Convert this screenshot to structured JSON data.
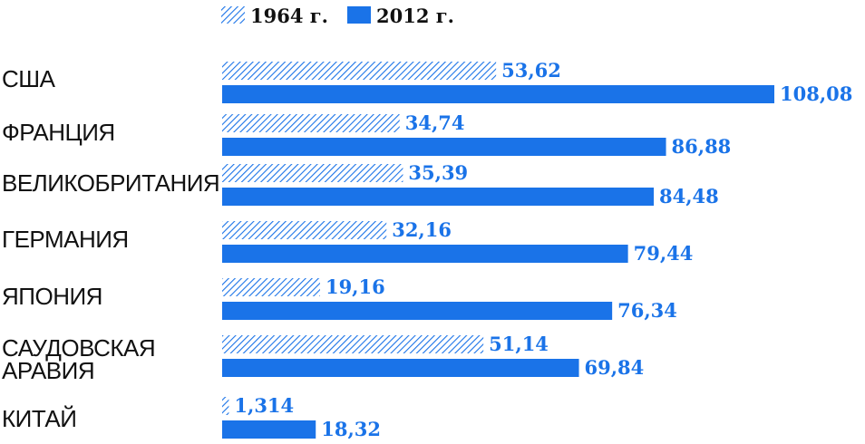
{
  "chart_data": {
    "type": "bar",
    "orientation": "horizontal",
    "title": "",
    "xlabel": "",
    "ylabel": "",
    "categories": [
      "США",
      "ФРАНЦИЯ",
      "ВЕЛИКОБРИТАНИЯ",
      "ГЕРМАНИЯ",
      "ЯПОНИЯ",
      "САУДОВСКАЯ АРАВИЯ",
      "КИТАЙ"
    ],
    "series": [
      {
        "name": "1964 г.",
        "values": [
          53.62,
          34.74,
          35.39,
          32.16,
          19.16,
          51.14,
          1.314
        ],
        "labels": [
          "53,62",
          "34,74",
          "35,39",
          "32,16",
          "19,16",
          "51,14",
          "1,314"
        ],
        "fill": "hatched",
        "color": "#1a73e8"
      },
      {
        "name": "2012 г.",
        "values": [
          108.08,
          86.88,
          84.48,
          79.44,
          76.34,
          69.84,
          18.32
        ],
        "labels": [
          "108,08",
          "86,88",
          "84,48",
          "79,44",
          "76,34",
          "69,84",
          "18,32"
        ],
        "fill": "solid",
        "color": "#1a73e8"
      }
    ],
    "xlim": [
      0,
      108.08
    ],
    "grid": false,
    "legend_position": "top"
  }
}
